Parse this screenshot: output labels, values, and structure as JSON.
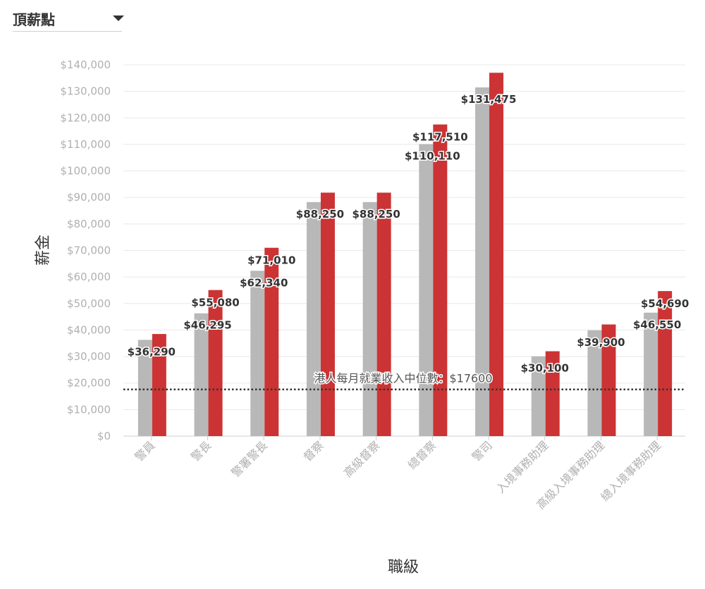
{
  "dropdown": {
    "selected": "頂薪點"
  },
  "reference": {
    "label": "港人每月就業收入中位數：$17600",
    "value": 17600
  },
  "colors": {
    "bar_gray": "#b8b8b8",
    "bar_red": "#cc3334",
    "axis_text": "#b0b0b0",
    "grid": "#e8e8e8"
  },
  "chart_data": {
    "type": "bar",
    "xlabel": "職級",
    "ylabel": "薪金",
    "ylim": [
      0,
      140000
    ],
    "yticks": [
      "$0",
      "$10,000",
      "$20,000",
      "$30,000",
      "$40,000",
      "$50,000",
      "$60,000",
      "$70,000",
      "$80,000",
      "$90,000",
      "$100,000",
      "$110,000",
      "$120,000",
      "$130,000",
      "$140,000"
    ],
    "categories": [
      "警員",
      "警長",
      "警署警長",
      "督察",
      "高級督察",
      "總督察",
      "警司",
      "入境事務助理",
      "高級入境事務助理",
      "總入境事務助理"
    ],
    "series": [
      {
        "values": [
          36290,
          46295,
          62340,
          88250,
          88250,
          110110,
          131475,
          30100,
          39900,
          46550
        ]
      },
      {
        "values": [
          38500,
          55080,
          71010,
          91800,
          91800,
          117510,
          137000,
          32000,
          42100,
          54690
        ]
      }
    ],
    "labels_gray": [
      "$36,290",
      "$46,295",
      "$62,340",
      "$88,250",
      "$88,250",
      "$110,110",
      "$131,475",
      "$30,100",
      "$39,900",
      "$46,550"
    ],
    "labels_red": [
      "",
      "$55,080",
      "$71,010",
      "",
      "",
      "$117,510",
      "",
      "",
      "",
      "$54,690"
    ]
  }
}
